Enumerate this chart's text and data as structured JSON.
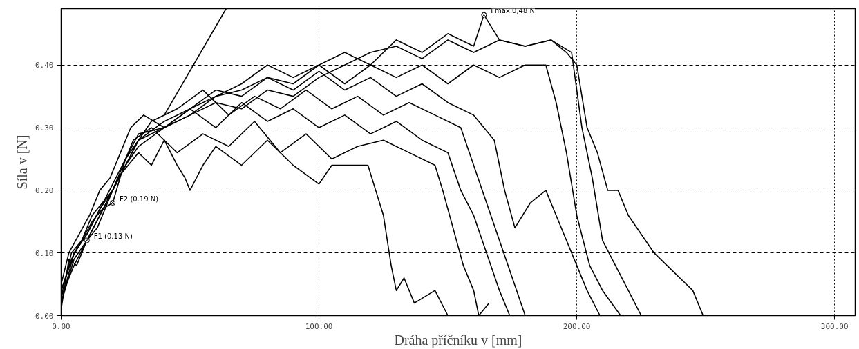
{
  "chart_data": {
    "type": "line",
    "xlabel": "Dráha příčníku v [mm]",
    "ylabel": "Síla v [N]",
    "xlim": [
      0,
      308
    ],
    "ylim": [
      0,
      0.49
    ],
    "xticks": [
      {
        "value": 0,
        "label": "0.00"
      },
      {
        "value": 100,
        "label": "100.00"
      },
      {
        "value": 200,
        "label": "200.00"
      },
      {
        "value": 300,
        "label": "300.00"
      }
    ],
    "yticks": [
      {
        "value": 0,
        "label": "0.00"
      },
      {
        "value": 0.1,
        "label": "0.10"
      },
      {
        "value": 0.2,
        "label": "0.20"
      },
      {
        "value": 0.3,
        "label": "0.30"
      },
      {
        "value": 0.4,
        "label": "0.40"
      }
    ],
    "grid": true,
    "marker": "none",
    "line_style": "solid",
    "series": [
      {
        "color": "#000000",
        "x": [
          0,
          3,
          6,
          10,
          14,
          18,
          22,
          26,
          30,
          35,
          40,
          45,
          48,
          50,
          55,
          60,
          70,
          80,
          90,
          100,
          105,
          110,
          115,
          119,
          122,
          125,
          128,
          130,
          133,
          137,
          145,
          150
        ],
        "values": [
          0.01,
          0.09,
          0.08,
          0.12,
          0.14,
          0.18,
          0.22,
          0.24,
          0.26,
          0.24,
          0.28,
          0.24,
          0.22,
          0.2,
          0.24,
          0.27,
          0.24,
          0.28,
          0.24,
          0.21,
          0.24,
          0.24,
          0.24,
          0.24,
          0.2,
          0.16,
          0.08,
          0.04,
          0.06,
          0.02,
          0.04,
          0.0
        ]
      },
      {
        "color": "#000000",
        "x": [
          0,
          4,
          8,
          12,
          16,
          20,
          24,
          28,
          35,
          45,
          55,
          65,
          75,
          85,
          95,
          105,
          115,
          125,
          135,
          145,
          148,
          152,
          156,
          160,
          162,
          166
        ],
        "values": [
          0.03,
          0.1,
          0.12,
          0.16,
          0.18,
          0.2,
          0.24,
          0.28,
          0.3,
          0.26,
          0.29,
          0.27,
          0.31,
          0.26,
          0.29,
          0.25,
          0.27,
          0.28,
          0.26,
          0.24,
          0.2,
          0.14,
          0.08,
          0.04,
          0.0,
          0.02
        ]
      },
      {
        "color": "#000000",
        "x": [
          0,
          3,
          7,
          11,
          15,
          19,
          23,
          27,
          32,
          40,
          50,
          60,
          70,
          80,
          90,
          100,
          110,
          120,
          130,
          140,
          150,
          155,
          160,
          165,
          170,
          174
        ],
        "values": [
          0.05,
          0.1,
          0.13,
          0.16,
          0.2,
          0.22,
          0.26,
          0.3,
          0.32,
          0.3,
          0.33,
          0.3,
          0.34,
          0.31,
          0.33,
          0.3,
          0.32,
          0.29,
          0.31,
          0.28,
          0.26,
          0.2,
          0.16,
          0.1,
          0.04,
          0.0
        ]
      },
      {
        "color": "#000000",
        "x": [
          0,
          4,
          8,
          12,
          16,
          20,
          25,
          30,
          35,
          45,
          55,
          65,
          75,
          85,
          95,
          105,
          115,
          125,
          135,
          145,
          155,
          160,
          165,
          170,
          175,
          180
        ],
        "values": [
          0.04,
          0.09,
          0.12,
          0.15,
          0.17,
          0.18,
          0.25,
          0.28,
          0.31,
          0.33,
          0.36,
          0.32,
          0.35,
          0.33,
          0.36,
          0.33,
          0.35,
          0.32,
          0.34,
          0.32,
          0.3,
          0.24,
          0.18,
          0.12,
          0.06,
          0.0
        ]
      },
      {
        "color": "#000000",
        "x": [
          0,
          5,
          10,
          15,
          20,
          25,
          30,
          40,
          50,
          60,
          70,
          80,
          90,
          100,
          110,
          120,
          130,
          140,
          150,
          160,
          168,
          172,
          176,
          182,
          188,
          192,
          196,
          200,
          204,
          209
        ],
        "values": [
          0.02,
          0.1,
          0.13,
          0.17,
          0.2,
          0.24,
          0.28,
          0.3,
          0.33,
          0.36,
          0.35,
          0.38,
          0.36,
          0.39,
          0.36,
          0.38,
          0.35,
          0.37,
          0.34,
          0.32,
          0.28,
          0.2,
          0.14,
          0.18,
          0.2,
          0.16,
          0.12,
          0.08,
          0.04,
          0.0
        ]
      },
      {
        "color": "#000000",
        "x": [
          0,
          5,
          10,
          15,
          20,
          25,
          30,
          40,
          50,
          60,
          70,
          80,
          90,
          100,
          110,
          120,
          130,
          140,
          150,
          160,
          170,
          180,
          188,
          192,
          196,
          200,
          205,
          210,
          217
        ],
        "values": [
          0.03,
          0.08,
          0.12,
          0.16,
          0.2,
          0.24,
          0.27,
          0.3,
          0.32,
          0.35,
          0.37,
          0.4,
          0.38,
          0.4,
          0.37,
          0.4,
          0.38,
          0.4,
          0.37,
          0.4,
          0.38,
          0.4,
          0.4,
          0.34,
          0.26,
          0.16,
          0.08,
          0.04,
          0.0
        ]
      },
      {
        "color": "#000000",
        "x": [
          0,
          5,
          10,
          15,
          20,
          25,
          30,
          40,
          50,
          60,
          70,
          80,
          90,
          100,
          110,
          120,
          130,
          140,
          150,
          160,
          164,
          170,
          180,
          190,
          198,
          202,
          206,
          210,
          215,
          220,
          225
        ],
        "values": [
          0.02,
          0.09,
          0.12,
          0.16,
          0.2,
          0.24,
          0.28,
          0.31,
          0.33,
          0.35,
          0.36,
          0.38,
          0.37,
          0.4,
          0.42,
          0.4,
          0.44,
          0.42,
          0.45,
          0.43,
          0.48,
          0.44,
          0.43,
          0.44,
          0.42,
          0.3,
          0.22,
          0.12,
          0.08,
          0.04,
          0.0
        ]
      },
      {
        "color": "#000000",
        "x": [
          0,
          5,
          10,
          15,
          20,
          25,
          30,
          40,
          50,
          60,
          70,
          80,
          90,
          100,
          110,
          120,
          130,
          140,
          150,
          160,
          170,
          180,
          190,
          196,
          200,
          204,
          208,
          212,
          216,
          220,
          225,
          230,
          235,
          240,
          245,
          249
        ],
        "values": [
          0.04,
          0.1,
          0.13,
          0.17,
          0.21,
          0.25,
          0.29,
          0.3,
          0.32,
          0.34,
          0.33,
          0.36,
          0.35,
          0.38,
          0.4,
          0.42,
          0.43,
          0.41,
          0.44,
          0.42,
          0.44,
          0.43,
          0.44,
          0.42,
          0.4,
          0.3,
          0.26,
          0.2,
          0.2,
          0.16,
          0.13,
          0.1,
          0.08,
          0.06,
          0.04,
          0.0
        ]
      },
      {
        "color": "#000000",
        "x": [
          40,
          64
        ],
        "values": [
          0.32,
          0.49
        ]
      }
    ],
    "annotations": [
      {
        "text": "Fmax 0,48 N",
        "x": 164,
        "y": 0.48
      },
      {
        "text": "F2 (0.19 N)",
        "x": 20,
        "y": 0.18
      },
      {
        "text": "F1 (0.13 N)",
        "x": 10,
        "y": 0.12
      }
    ]
  }
}
